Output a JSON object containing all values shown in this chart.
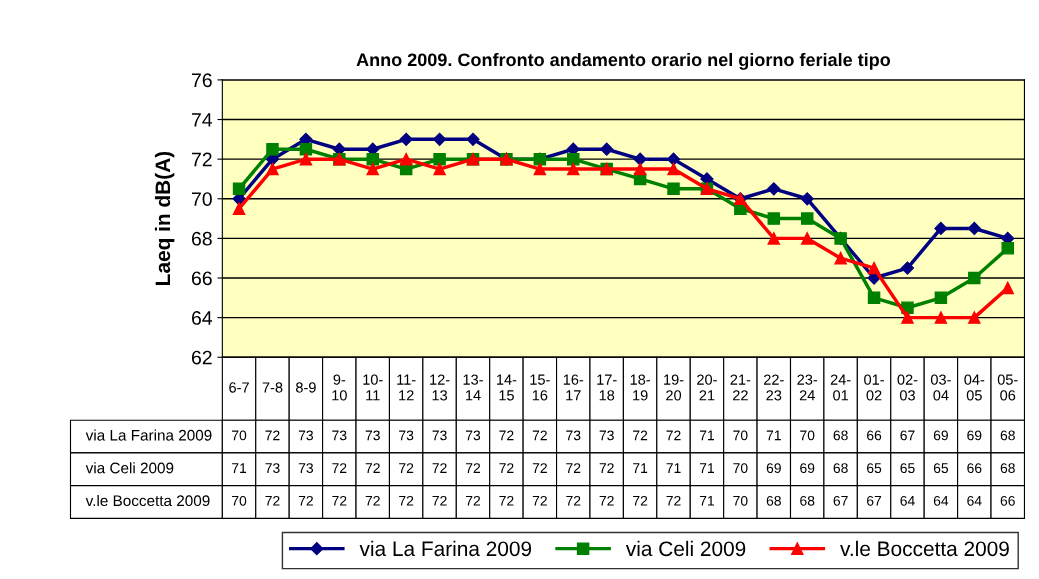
{
  "chart_data": {
    "type": "line",
    "title": "Anno 2009. Confronto andamento orario nel giorno feriale tipo",
    "ylabel": "Laeq in dB(A)",
    "categories": [
      "6-7",
      "7-8",
      "8-9",
      "9-10",
      "10-11",
      "11-12",
      "12-13",
      "13-14",
      "14-15",
      "15-16",
      "16-17",
      "17-18",
      "18-19",
      "19-20",
      "20-21",
      "21-22",
      "22-23",
      "23-24",
      "24-01",
      "01-02",
      "02-03",
      "03-04",
      "04-05",
      "05-06"
    ],
    "ylim": [
      62,
      76
    ],
    "yticks": [
      62,
      64,
      66,
      68,
      70,
      72,
      74,
      76
    ],
    "grid": "y",
    "legend": "bottom",
    "tick_labels": "y",
    "line_style": "solid",
    "series": [
      {
        "name": "via La Farina 2009",
        "color": "#000080",
        "marker": "diamond",
        "values": [
          70,
          72,
          73,
          72.5,
          72.5,
          73,
          73,
          73,
          72,
          72,
          72.5,
          72.5,
          72,
          72,
          71,
          70,
          70.5,
          70,
          68,
          66,
          66.5,
          68.5,
          68.5,
          68
        ],
        "value_labels": [
          "70",
          "72",
          "73",
          "73",
          "73",
          "73",
          "73",
          "73",
          "72",
          "72",
          "73",
          "73",
          "72",
          "72",
          "71",
          "70",
          "71",
          "70",
          "68",
          "66",
          "67",
          "69",
          "69",
          "68"
        ]
      },
      {
        "name": "via Celi 2009",
        "color": "#008000",
        "marker": "square",
        "values": [
          70.5,
          72.5,
          72.5,
          72,
          72,
          71.5,
          72,
          72,
          72,
          72,
          72,
          71.5,
          71,
          70.5,
          70.5,
          69.5,
          69,
          69,
          68,
          65,
          64.5,
          65,
          66,
          67.5
        ],
        "value_labels": [
          "71",
          "73",
          "73",
          "72",
          "72",
          "72",
          "72",
          "72",
          "72",
          "72",
          "72",
          "72",
          "71",
          "71",
          "71",
          "70",
          "69",
          "69",
          "68",
          "65",
          "65",
          "65",
          "66",
          "68"
        ]
      },
      {
        "name": "v.le Boccetta 2009",
        "color": "#ff0000",
        "marker": "triangle",
        "values": [
          69.5,
          71.5,
          72,
          72,
          71.5,
          72,
          71.5,
          72,
          72,
          71.5,
          71.5,
          71.5,
          71.5,
          71.5,
          70.5,
          70,
          68,
          68,
          67,
          66.5,
          64,
          64,
          64,
          65.5
        ],
        "value_labels": [
          "70",
          "72",
          "72",
          "72",
          "72",
          "72",
          "72",
          "72",
          "72",
          "72",
          "72",
          "72",
          "72",
          "72",
          "71",
          "70",
          "68",
          "68",
          "67",
          "67",
          "64",
          "64",
          "64",
          "66"
        ]
      }
    ]
  }
}
